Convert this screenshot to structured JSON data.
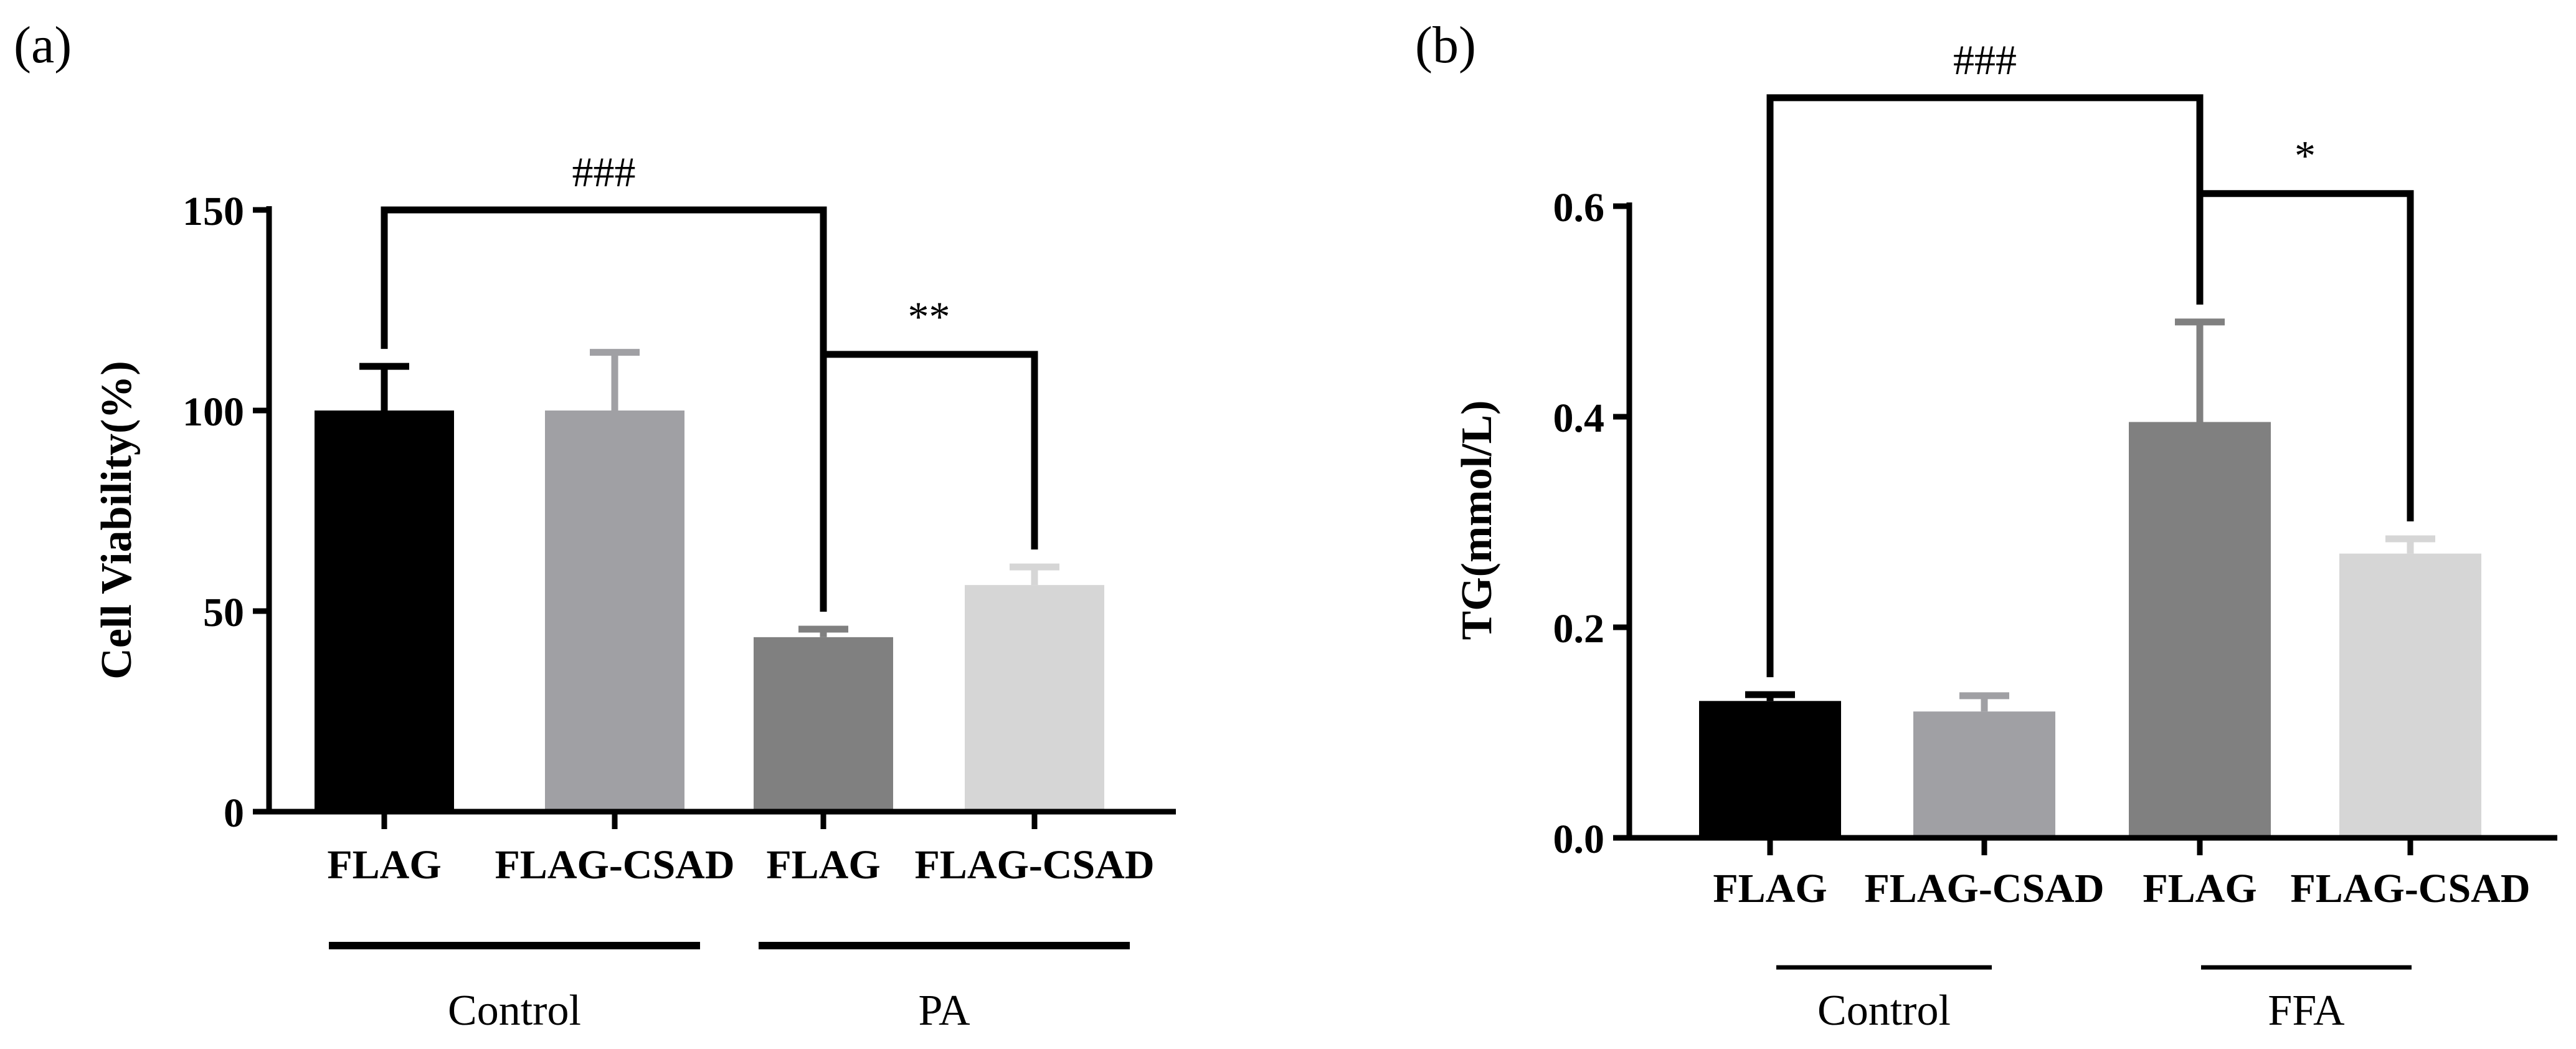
{
  "panels": [
    {
      "panel_label": "(a)",
      "colors": [
        "#000000",
        "#a0a0a4",
        "#808080",
        "#d6d6d6"
      ]
    },
    {
      "panel_label": "(b)",
      "colors": [
        "#000000",
        "#a0a0a4",
        "#808080",
        "#d6d6d6"
      ]
    }
  ],
  "chart_data": [
    {
      "type": "bar",
      "title": "",
      "xlabel": "",
      "ylabel": "Cell Viability(%)",
      "ylim": [
        0,
        150
      ],
      "yticks": [
        0,
        50,
        100,
        150
      ],
      "categories": [
        "FLAG",
        "FLAG-CSAD",
        "FLAG",
        "FLAG-CSAD"
      ],
      "values": [
        100,
        100,
        43.5,
        56.5
      ],
      "errors": [
        11,
        14.5,
        2,
        4.5
      ],
      "groups": [
        {
          "label": "Control",
          "bars": [
            0,
            1
          ]
        },
        {
          "label": "PA",
          "bars": [
            2,
            3
          ]
        }
      ],
      "annotations": [
        {
          "text": "###",
          "from": 0,
          "to": 2,
          "level": 150
        },
        {
          "text": "**",
          "from": 2,
          "to": 3,
          "level": 114
        }
      ]
    },
    {
      "type": "bar",
      "title": "",
      "xlabel": "",
      "ylabel": "TG(mmol/L)",
      "ylim": [
        0,
        0.6
      ],
      "yticks": [
        0.0,
        0.2,
        0.4,
        0.6
      ],
      "categories": [
        "FLAG",
        "FLAG-CSAD",
        "FLAG",
        "FLAG-CSAD"
      ],
      "values": [
        0.13,
        0.12,
        0.395,
        0.27
      ],
      "errors": [
        0.006,
        0.015,
        0.095,
        0.014
      ],
      "groups": [
        {
          "label": "Control",
          "bars": [
            0,
            1
          ]
        },
        {
          "label": "FFA",
          "bars": [
            2,
            3
          ]
        }
      ],
      "annotations": [
        {
          "text": "###",
          "from": 0,
          "to": 2,
          "level": 0.703
        },
        {
          "text": "*",
          "from": 2,
          "to": 3,
          "level": 0.612
        }
      ]
    }
  ]
}
